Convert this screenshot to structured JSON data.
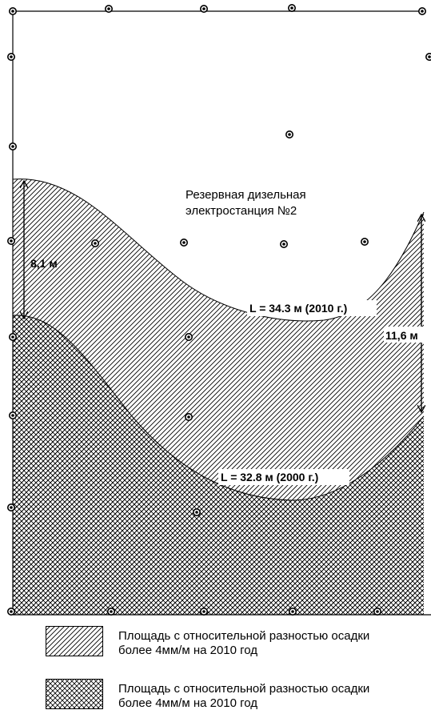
{
  "diagram": {
    "label_station_line1": "Резервная дизельная",
    "label_station_line2": "электростанция №2",
    "label_boundary_2010": "L = 34.3 м (2010 г.)",
    "label_boundary_2000": "L = 32.8 м (2000 г.)",
    "dimension_left": "8,1 м",
    "dimension_right": "11,6 м"
  },
  "legend": {
    "items": [
      {
        "pattern": "hatch",
        "line1": "Площадь с относительной разностью осадки",
        "line2": "более 4мм/м на 2010 год"
      },
      {
        "pattern": "crosshatch",
        "line1": "Площадь с относительной разностью осадки",
        "line2": "более 4мм/м на 2010 год"
      }
    ]
  },
  "colors": {
    "line": "#000000",
    "background": "#ffffff"
  }
}
